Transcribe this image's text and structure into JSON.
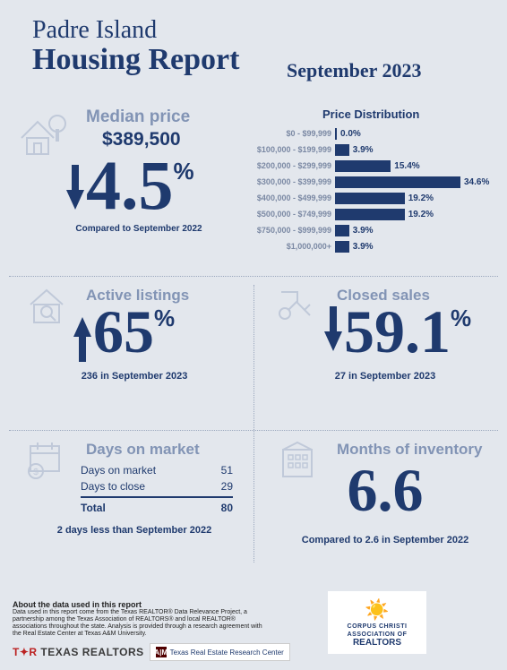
{
  "title": {
    "line1": "Padre Island",
    "line2": "Housing Report"
  },
  "month_label": "September 2023",
  "median": {
    "label": "Median price",
    "value": "$389,500",
    "change_pct": "4.5",
    "direction": "down",
    "compare": "Compared to September 2022"
  },
  "distribution": {
    "title": "Price Distribution",
    "max_pct": 34.6,
    "bar_color": "#1f3a6e",
    "rows": [
      {
        "label": "$0 - $99,999",
        "pct": 0.0,
        "display": "0.0%"
      },
      {
        "label": "$100,000 - $199,999",
        "pct": 3.9,
        "display": "3.9%"
      },
      {
        "label": "$200,000 - $299,999",
        "pct": 15.4,
        "display": "15.4%"
      },
      {
        "label": "$300,000 - $399,999",
        "pct": 34.6,
        "display": "34.6%"
      },
      {
        "label": "$400,000 - $499,999",
        "pct": 19.2,
        "display": "19.2%"
      },
      {
        "label": "$500,000 - $749,999",
        "pct": 19.2,
        "display": "19.2%"
      },
      {
        "label": "$750,000 - $999,999",
        "pct": 3.9,
        "display": "3.9%"
      },
      {
        "label": "$1,000,000+",
        "pct": 3.9,
        "display": "3.9%"
      }
    ]
  },
  "listings": {
    "label": "Active listings",
    "change_pct": "65",
    "direction": "up",
    "sub": "236 in September 2023"
  },
  "closed": {
    "label": "Closed sales",
    "change_pct": "59.1",
    "direction": "down",
    "sub": "27 in September 2023"
  },
  "days": {
    "label": "Days on market",
    "rows": [
      {
        "label": "Days on market",
        "value": "51"
      },
      {
        "label": "Days to close",
        "value": "29"
      }
    ],
    "total_label": "Total",
    "total_value": "80",
    "sub": "2 days less than September 2022"
  },
  "inventory": {
    "label": "Months of inventory",
    "value": "6.6",
    "sub": "Compared to 2.6 in September 2022"
  },
  "footer": {
    "about_title": "About the data used in this report",
    "about_text": "Data used in this report come from the Texas REALTOR® Data Relevance Project, a partnership among the Texas Association of REALTORS® and local REALTOR® associations throughout the state. Analysis is provided through a research agreement with the Real Estate Center at Texas A&M University.",
    "texas_realtors": "TEXAS REALTORS",
    "tam_label": "Texas Real Estate Research Center",
    "tam_badge": "A|M",
    "cc_line1": "CORPUS CHRISTI",
    "cc_line2": "ASSOCIATION OF",
    "cc_line3": "REALTORS"
  },
  "colors": {
    "primary": "#1f3a6e",
    "muted": "#8294b5",
    "background": "#e3e7ed"
  }
}
